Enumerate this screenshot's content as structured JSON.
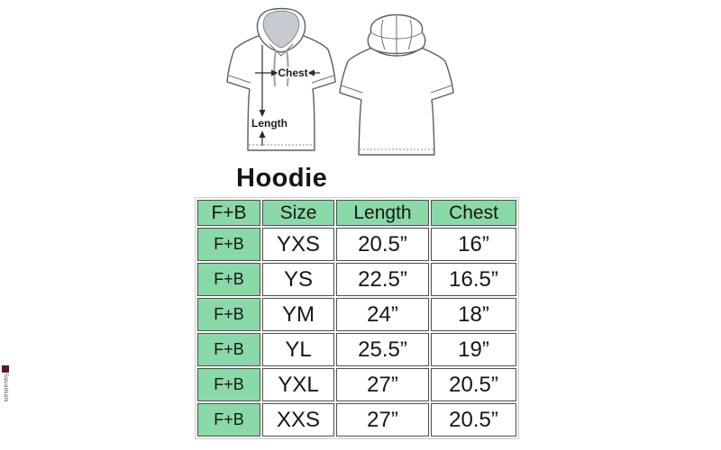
{
  "title": "Hoodie",
  "diagram": {
    "chest_label": "Chest",
    "length_label": "Length"
  },
  "size_chart": {
    "headers": [
      "F+B",
      "Size",
      "Length",
      "Chest"
    ],
    "rows": [
      [
        "F+B",
        "YXS",
        "20.5”",
        "16”"
      ],
      [
        "F+B",
        "YS",
        "22.5”",
        "16.5”"
      ],
      [
        "F+B",
        "YM",
        "24”",
        "18”"
      ],
      [
        "F+B",
        "YL",
        "25.5”",
        "19”"
      ],
      [
        "F+B",
        "YXL",
        "27”",
        "20.5”"
      ],
      [
        "F+B",
        "XXS",
        "27”",
        "20.5”"
      ]
    ]
  },
  "watermark": {
    "text": "Squadsats"
  },
  "colors": {
    "header_green": "#8ad9a8",
    "cell_border": "#4f4f4f",
    "drawing_stroke": "#5d5d5d"
  }
}
